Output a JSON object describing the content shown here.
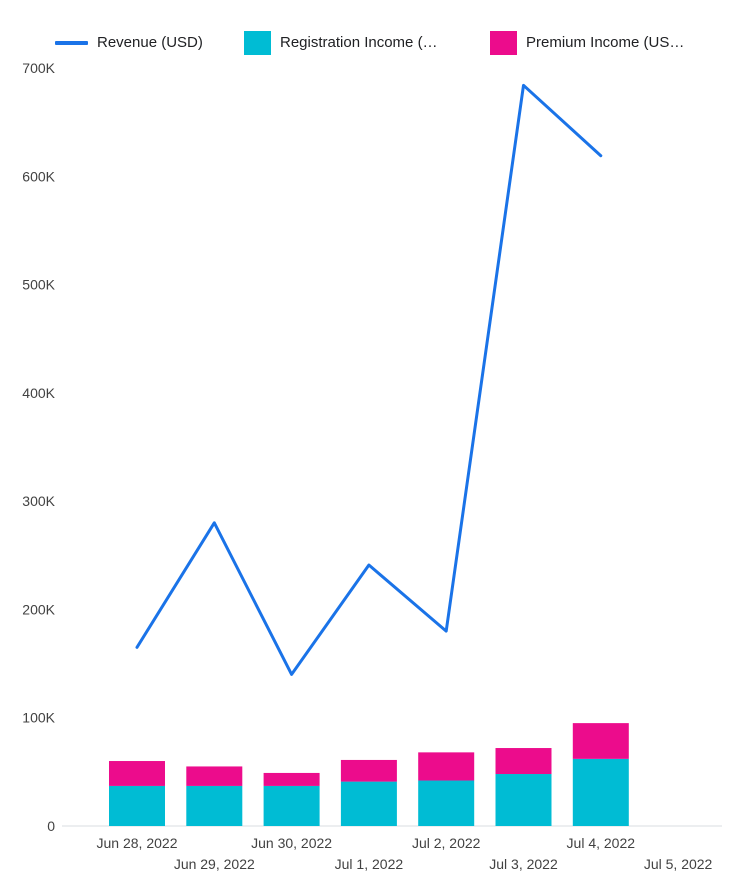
{
  "legend": {
    "items": [
      {
        "label": "Revenue (USD)",
        "color": "#1a73e8",
        "swatch": "line"
      },
      {
        "label": "Registration Income (…",
        "color": "#00bcd4",
        "swatch": "box"
      },
      {
        "label": "Premium Income (US…",
        "color": "#ec0c8c",
        "swatch": "box"
      }
    ]
  },
  "chart_data": {
    "type": "combo",
    "title": "",
    "xlabel": "",
    "ylabel": "",
    "legend_position": "top",
    "grid": false,
    "ylim": [
      0,
      700000
    ],
    "y_tick_labels": [
      "0",
      "100K",
      "200K",
      "300K",
      "400K",
      "500K",
      "600K",
      "700K"
    ],
    "y_tick_values": [
      0,
      100000,
      200000,
      300000,
      400000,
      500000,
      600000,
      700000
    ],
    "categories": [
      "Jun 28, 2022",
      "Jun 29, 2022",
      "Jun 30, 2022",
      "Jul 1, 2022",
      "Jul 2, 2022",
      "Jul 3, 2022",
      "Jul 4, 2022",
      "Jul 5, 2022"
    ],
    "series": [
      {
        "name": "Revenue (USD)",
        "type": "line",
        "color": "#1a73e8",
        "values": [
          165000,
          280000,
          140000,
          241000,
          180000,
          684000,
          619000,
          null
        ]
      },
      {
        "name": "Registration Income (…",
        "type": "stacked-bar",
        "color": "#00bcd4",
        "values": [
          37000,
          37000,
          37000,
          41000,
          42000,
          48000,
          62000,
          null
        ]
      },
      {
        "name": "Premium Income (US…",
        "type": "stacked-bar",
        "color": "#ec0c8c",
        "values": [
          23000,
          18000,
          12000,
          20000,
          26000,
          24000,
          33000,
          null
        ]
      }
    ],
    "axis_colors": {
      "tick_label": "#424242",
      "baseline": "#dadce0"
    }
  }
}
